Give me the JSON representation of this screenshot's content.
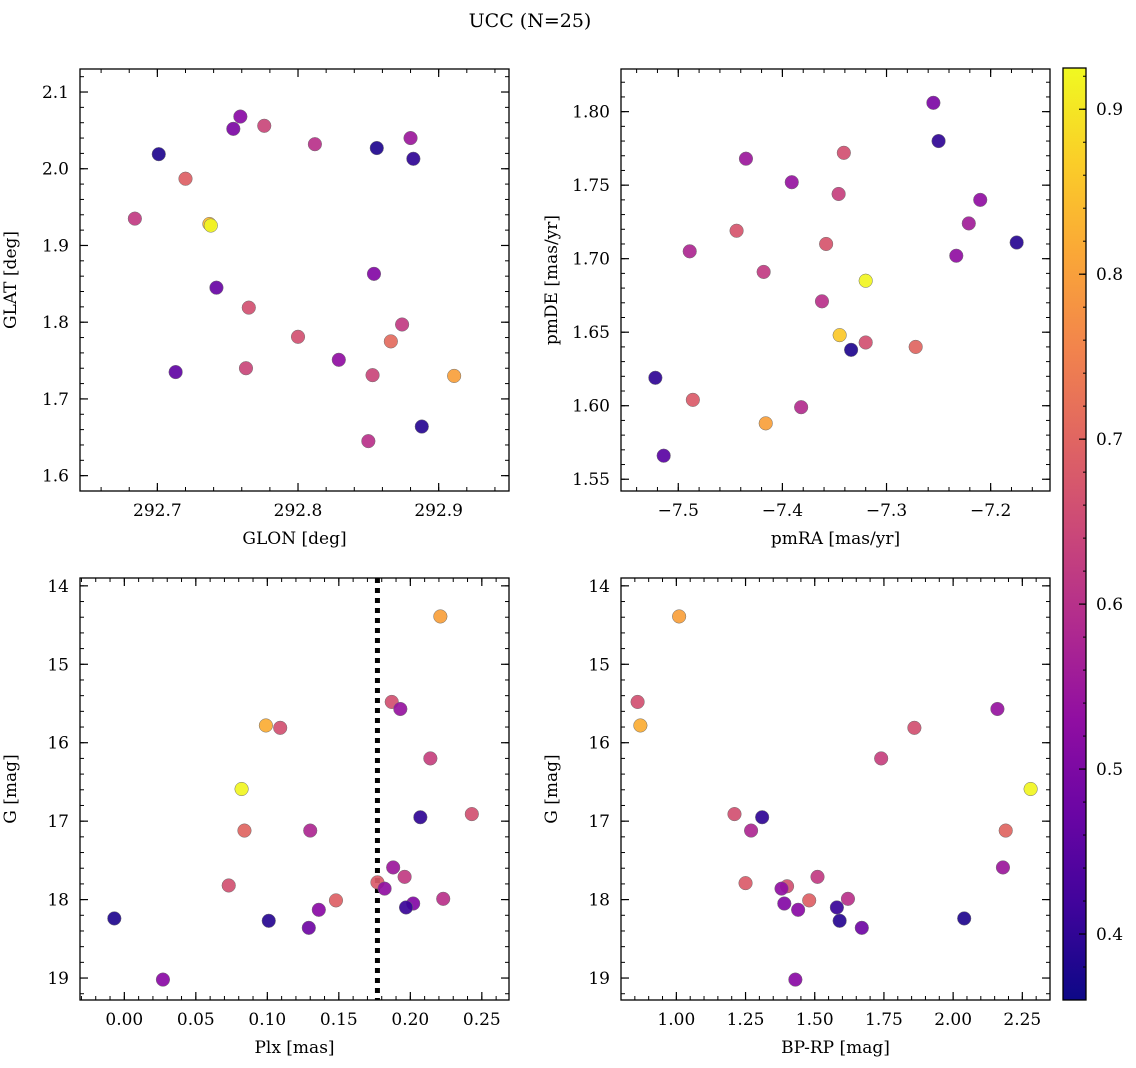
{
  "figure_title": "UCC (N=25)",
  "colorbar": {
    "range": [
      0.36,
      0.925
    ],
    "ticks": [
      0.4,
      0.5,
      0.6,
      0.7,
      0.8,
      0.9
    ],
    "tick_labels": [
      "0.4",
      "0.5",
      "0.6",
      "0.7",
      "0.8",
      "0.9"
    ],
    "colormap": "plasma"
  },
  "chart_data": [
    {
      "type": "scatter",
      "id": "glon_glat",
      "xlabel": "GLON [deg]",
      "ylabel": "GLAT [deg]",
      "xlim": [
        292.645,
        292.95
      ],
      "ylim": [
        1.58,
        2.13
      ],
      "x_ticks": [
        292.7,
        292.8,
        292.9
      ],
      "x_tick_labels": [
        "292.7",
        "292.8",
        "292.9"
      ],
      "y_ticks": [
        1.6,
        1.7,
        1.8,
        1.9,
        2.0,
        2.1
      ],
      "y_tick_labels": [
        "1.6",
        "1.7",
        "1.8",
        "1.9",
        "2.0",
        "2.1"
      ],
      "points": [
        {
          "x": 292.759,
          "y": 2.068,
          "c": 0.52
        },
        {
          "x": 292.754,
          "y": 2.052,
          "c": 0.5
        },
        {
          "x": 292.776,
          "y": 2.056,
          "c": 0.64
        },
        {
          "x": 292.701,
          "y": 2.019,
          "c": 0.38
        },
        {
          "x": 292.812,
          "y": 2.032,
          "c": 0.6
        },
        {
          "x": 292.856,
          "y": 2.027,
          "c": 0.38
        },
        {
          "x": 292.88,
          "y": 2.04,
          "c": 0.55
        },
        {
          "x": 292.882,
          "y": 2.013,
          "c": 0.4
        },
        {
          "x": 292.72,
          "y": 1.987,
          "c": 0.69
        },
        {
          "x": 292.684,
          "y": 1.935,
          "c": 0.62
        },
        {
          "x": 292.737,
          "y": 1.928,
          "c": 0.84
        },
        {
          "x": 292.738,
          "y": 1.926,
          "c": 0.92
        },
        {
          "x": 292.742,
          "y": 1.845,
          "c": 0.47
        },
        {
          "x": 292.854,
          "y": 1.863,
          "c": 0.51
        },
        {
          "x": 292.765,
          "y": 1.819,
          "c": 0.66
        },
        {
          "x": 292.8,
          "y": 1.781,
          "c": 0.66
        },
        {
          "x": 292.874,
          "y": 1.797,
          "c": 0.62
        },
        {
          "x": 292.866,
          "y": 1.775,
          "c": 0.71
        },
        {
          "x": 292.829,
          "y": 1.751,
          "c": 0.53
        },
        {
          "x": 292.853,
          "y": 1.731,
          "c": 0.64
        },
        {
          "x": 292.713,
          "y": 1.735,
          "c": 0.46
        },
        {
          "x": 292.763,
          "y": 1.74,
          "c": 0.64
        },
        {
          "x": 292.911,
          "y": 1.73,
          "c": 0.8
        },
        {
          "x": 292.85,
          "y": 1.645,
          "c": 0.6
        },
        {
          "x": 292.888,
          "y": 1.664,
          "c": 0.39
        }
      ]
    },
    {
      "type": "scatter",
      "id": "pmra_pmde",
      "xlabel": "pmRA [mas/yr]",
      "ylabel": "pmDE [mas/yr]",
      "xlim": [
        -7.555,
        -7.143
      ],
      "ylim": [
        1.542,
        1.829
      ],
      "x_ticks": [
        -7.5,
        -7.4,
        -7.3,
        -7.2
      ],
      "x_tick_labels": [
        "−7.5",
        "−7.4",
        "−7.3",
        "−7.2"
      ],
      "y_ticks": [
        1.55,
        1.6,
        1.65,
        1.7,
        1.75,
        1.8
      ],
      "y_tick_labels": [
        "1.55",
        "1.60",
        "1.65",
        "1.70",
        "1.75",
        "1.80"
      ],
      "points": [
        {
          "x": -7.255,
          "y": 1.806,
          "c": 0.5
        },
        {
          "x": -7.25,
          "y": 1.78,
          "c": 0.4
        },
        {
          "x": -7.435,
          "y": 1.768,
          "c": 0.55
        },
        {
          "x": -7.341,
          "y": 1.772,
          "c": 0.66
        },
        {
          "x": -7.391,
          "y": 1.752,
          "c": 0.54
        },
        {
          "x": -7.346,
          "y": 1.744,
          "c": 0.63
        },
        {
          "x": -7.21,
          "y": 1.74,
          "c": 0.53
        },
        {
          "x": -7.221,
          "y": 1.724,
          "c": 0.56
        },
        {
          "x": -7.444,
          "y": 1.719,
          "c": 0.67
        },
        {
          "x": -7.489,
          "y": 1.705,
          "c": 0.58
        },
        {
          "x": -7.358,
          "y": 1.71,
          "c": 0.67
        },
        {
          "x": -7.175,
          "y": 1.711,
          "c": 0.39
        },
        {
          "x": -7.233,
          "y": 1.702,
          "c": 0.53
        },
        {
          "x": -7.418,
          "y": 1.691,
          "c": 0.62
        },
        {
          "x": -7.32,
          "y": 1.685,
          "c": 0.92
        },
        {
          "x": -7.362,
          "y": 1.671,
          "c": 0.6
        },
        {
          "x": -7.345,
          "y": 1.648,
          "c": 0.86
        },
        {
          "x": -7.32,
          "y": 1.643,
          "c": 0.66
        },
        {
          "x": -7.334,
          "y": 1.638,
          "c": 0.38
        },
        {
          "x": -7.272,
          "y": 1.64,
          "c": 0.7
        },
        {
          "x": -7.522,
          "y": 1.619,
          "c": 0.4
        },
        {
          "x": -7.486,
          "y": 1.604,
          "c": 0.68
        },
        {
          "x": -7.382,
          "y": 1.599,
          "c": 0.59
        },
        {
          "x": -7.416,
          "y": 1.588,
          "c": 0.8
        },
        {
          "x": -7.514,
          "y": 1.566,
          "c": 0.45
        }
      ]
    },
    {
      "type": "scatter",
      "id": "plx_g",
      "xlabel": "Plx [mas]",
      "ylabel": "G [mag]",
      "xlim": [
        -0.031,
        0.269
      ],
      "ylim": [
        19.28,
        13.9
      ],
      "y_inverted": true,
      "x_ticks": [
        0.0,
        0.05,
        0.1,
        0.15,
        0.2,
        0.25
      ],
      "x_tick_labels": [
        "0.00",
        "0.05",
        "0.10",
        "0.15",
        "0.20",
        "0.25"
      ],
      "y_ticks": [
        14,
        15,
        16,
        17,
        18,
        19
      ],
      "y_tick_labels": [
        "14",
        "15",
        "16",
        "17",
        "18",
        "19"
      ],
      "vline": {
        "x": 0.177,
        "style": "dotted"
      },
      "points": [
        {
          "x": 0.221,
          "y": 14.39,
          "c": 0.8
        },
        {
          "x": 0.187,
          "y": 15.48,
          "c": 0.66
        },
        {
          "x": 0.193,
          "y": 15.57,
          "c": 0.54
        },
        {
          "x": 0.099,
          "y": 15.78,
          "c": 0.82
        },
        {
          "x": 0.109,
          "y": 15.81,
          "c": 0.66
        },
        {
          "x": 0.214,
          "y": 16.2,
          "c": 0.63
        },
        {
          "x": 0.082,
          "y": 16.59,
          "c": 0.92
        },
        {
          "x": 0.243,
          "y": 16.91,
          "c": 0.66
        },
        {
          "x": 0.207,
          "y": 16.95,
          "c": 0.4
        },
        {
          "x": 0.084,
          "y": 17.12,
          "c": 0.7
        },
        {
          "x": 0.13,
          "y": 17.12,
          "c": 0.58
        },
        {
          "x": 0.188,
          "y": 17.59,
          "c": 0.55
        },
        {
          "x": 0.196,
          "y": 17.71,
          "c": 0.62
        },
        {
          "x": 0.073,
          "y": 17.82,
          "c": 0.66
        },
        {
          "x": 0.177,
          "y": 17.78,
          "c": 0.68
        },
        {
          "x": 0.182,
          "y": 17.86,
          "c": 0.53
        },
        {
          "x": 0.148,
          "y": 18.01,
          "c": 0.69
        },
        {
          "x": 0.223,
          "y": 17.99,
          "c": 0.6
        },
        {
          "x": 0.202,
          "y": 18.05,
          "c": 0.51
        },
        {
          "x": 0.197,
          "y": 18.1,
          "c": 0.41
        },
        {
          "x": 0.136,
          "y": 18.13,
          "c": 0.52
        },
        {
          "x": -0.007,
          "y": 18.24,
          "c": 0.38
        },
        {
          "x": 0.101,
          "y": 18.27,
          "c": 0.39
        },
        {
          "x": 0.129,
          "y": 18.36,
          "c": 0.48
        },
        {
          "x": 0.027,
          "y": 19.02,
          "c": 0.52
        }
      ]
    },
    {
      "type": "scatter",
      "id": "bprp_g",
      "xlabel": "BP-RP [mag]",
      "ylabel": "G [mag]",
      "xlim": [
        0.8,
        2.35
      ],
      "ylim": [
        19.28,
        13.9
      ],
      "y_inverted": true,
      "x_ticks": [
        1.0,
        1.25,
        1.5,
        1.75,
        2.0,
        2.25
      ],
      "x_tick_labels": [
        "1.00",
        "1.25",
        "1.50",
        "1.75",
        "2.00",
        "2.25"
      ],
      "y_ticks": [
        14,
        15,
        16,
        17,
        18,
        19
      ],
      "y_tick_labels": [
        "14",
        "15",
        "16",
        "17",
        "18",
        "19"
      ],
      "points": [
        {
          "x": 1.01,
          "y": 14.39,
          "c": 0.8
        },
        {
          "x": 0.86,
          "y": 15.48,
          "c": 0.66
        },
        {
          "x": 0.87,
          "y": 15.78,
          "c": 0.82
        },
        {
          "x": 2.16,
          "y": 15.57,
          "c": 0.54
        },
        {
          "x": 1.86,
          "y": 15.81,
          "c": 0.66
        },
        {
          "x": 1.74,
          "y": 16.2,
          "c": 0.63
        },
        {
          "x": 2.28,
          "y": 16.59,
          "c": 0.92
        },
        {
          "x": 1.21,
          "y": 16.91,
          "c": 0.66
        },
        {
          "x": 1.31,
          "y": 16.95,
          "c": 0.4
        },
        {
          "x": 1.27,
          "y": 17.12,
          "c": 0.58
        },
        {
          "x": 2.19,
          "y": 17.12,
          "c": 0.7
        },
        {
          "x": 2.18,
          "y": 17.59,
          "c": 0.55
        },
        {
          "x": 1.51,
          "y": 17.71,
          "c": 0.62
        },
        {
          "x": 1.25,
          "y": 17.79,
          "c": 0.68
        },
        {
          "x": 1.4,
          "y": 17.83,
          "c": 0.66
        },
        {
          "x": 1.38,
          "y": 17.86,
          "c": 0.53
        },
        {
          "x": 1.62,
          "y": 17.99,
          "c": 0.6
        },
        {
          "x": 1.48,
          "y": 18.01,
          "c": 0.69
        },
        {
          "x": 1.39,
          "y": 18.05,
          "c": 0.51
        },
        {
          "x": 1.58,
          "y": 18.1,
          "c": 0.41
        },
        {
          "x": 1.44,
          "y": 18.13,
          "c": 0.52
        },
        {
          "x": 1.59,
          "y": 18.27,
          "c": 0.39
        },
        {
          "x": 2.04,
          "y": 18.24,
          "c": 0.38
        },
        {
          "x": 1.67,
          "y": 18.36,
          "c": 0.48
        },
        {
          "x": 1.43,
          "y": 19.02,
          "c": 0.52
        }
      ]
    }
  ]
}
